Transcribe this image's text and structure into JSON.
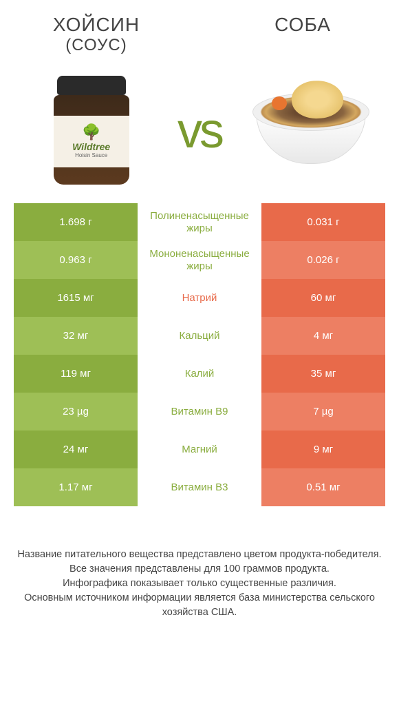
{
  "titles": {
    "left_main": "ХОЙСИН",
    "left_sub": "(СОУС)",
    "right": "СОБА"
  },
  "vs": "vs",
  "jar": {
    "brand": "Wildtree",
    "product": "Hoisin Sauce"
  },
  "colors": {
    "green_dark": "#8aad3f",
    "green_light": "#9ebf56",
    "orange_dark": "#e86a4a",
    "orange_light": "#ed7f63",
    "vs_color": "#7a9a2f"
  },
  "rows": [
    {
      "left": "1.698 г",
      "mid": "Полиненасыщенные жиры",
      "right": "0.031 г",
      "winner": "green"
    },
    {
      "left": "0.963 г",
      "mid": "Мононенасыщенные жиры",
      "right": "0.026 г",
      "winner": "green"
    },
    {
      "left": "1615 мг",
      "mid": "Натрий",
      "right": "60 мг",
      "winner": "orange"
    },
    {
      "left": "32 мг",
      "mid": "Кальций",
      "right": "4 мг",
      "winner": "green"
    },
    {
      "left": "119 мг",
      "mid": "Калий",
      "right": "35 мг",
      "winner": "green"
    },
    {
      "left": "23 µg",
      "mid": "Витамин B9",
      "right": "7 µg",
      "winner": "green"
    },
    {
      "left": "24 мг",
      "mid": "Магний",
      "right": "9 мг",
      "winner": "green"
    },
    {
      "left": "1.17 мг",
      "mid": "Витамин B3",
      "right": "0.51 мг",
      "winner": "green"
    }
  ],
  "footer": {
    "line1": "Название питательного вещества представлено цветом продукта-победителя.",
    "line2": "Все значения представлены для 100 граммов продукта.",
    "line3": "Инфографика показывает только существенные различия.",
    "line4": "Основным источником информации является база министерства сельского хозяйства США."
  }
}
